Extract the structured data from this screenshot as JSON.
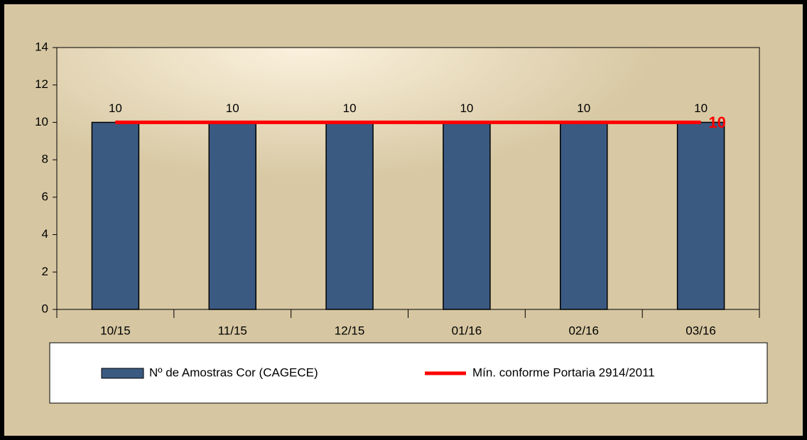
{
  "chart_data": {
    "type": "bar",
    "categories": [
      "10/15",
      "11/15",
      "12/15",
      "01/16",
      "02/16",
      "03/16"
    ],
    "series": [
      {
        "name": "Nº de Amostras Cor (CAGECE)",
        "type": "bar",
        "color": "#3b5a82",
        "values": [
          10,
          10,
          10,
          10,
          10,
          10
        ]
      },
      {
        "name": "Mín. conforme Portaria 2914/2011",
        "type": "line",
        "color": "#ff0000",
        "values": [
          10,
          10,
          10,
          10,
          10,
          10
        ]
      }
    ],
    "ylim": [
      0,
      14
    ],
    "yticks": [
      0,
      2,
      4,
      6,
      8,
      10,
      12,
      14
    ],
    "legend": "bottom"
  }
}
